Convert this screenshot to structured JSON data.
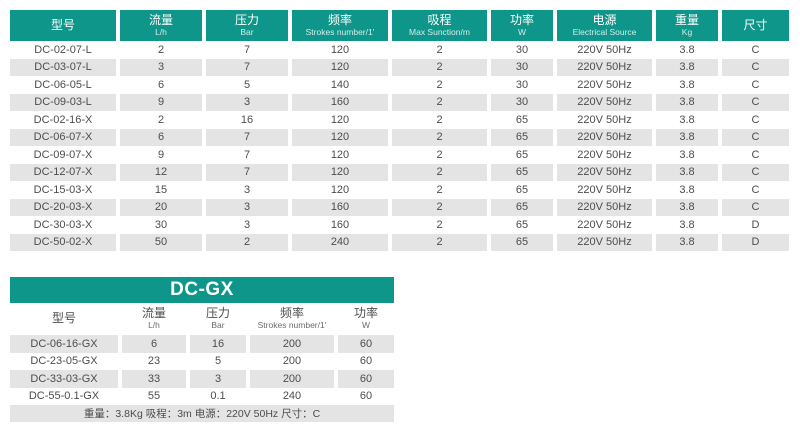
{
  "colors": {
    "accent_teal": "#0f968a",
    "row_alt_gray": "#e4e4e4",
    "text_gray": "#4d4d4d"
  },
  "main_table": {
    "headers": [
      {
        "zh": "型号",
        "en": ""
      },
      {
        "zh": "流量",
        "en": "L/h"
      },
      {
        "zh": "压力",
        "en": "Bar"
      },
      {
        "zh": "频率",
        "en": "Strokes number/1'"
      },
      {
        "zh": "吸程",
        "en": "Max Sunction/m"
      },
      {
        "zh": "功率",
        "en": "W"
      },
      {
        "zh": "电源",
        "en": "Electrical Source"
      },
      {
        "zh": "重量",
        "en": "Kg"
      },
      {
        "zh": "尺寸",
        "en": ""
      }
    ],
    "rows": [
      [
        "DC-02-07-L",
        "2",
        "7",
        "120",
        "2",
        "30",
        "220V 50Hz",
        "3.8",
        "C"
      ],
      [
        "DC-03-07-L",
        "3",
        "7",
        "120",
        "2",
        "30",
        "220V 50Hz",
        "3.8",
        "C"
      ],
      [
        "DC-06-05-L",
        "6",
        "5",
        "140",
        "2",
        "30",
        "220V 50Hz",
        "3.8",
        "C"
      ],
      [
        "DC-09-03-L",
        "9",
        "3",
        "160",
        "2",
        "30",
        "220V 50Hz",
        "3.8",
        "C"
      ],
      [
        "DC-02-16-X",
        "2",
        "16",
        "120",
        "2",
        "65",
        "220V 50Hz",
        "3.8",
        "C"
      ],
      [
        "DC-06-07-X",
        "6",
        "7",
        "120",
        "2",
        "65",
        "220V 50Hz",
        "3.8",
        "C"
      ],
      [
        "DC-09-07-X",
        "9",
        "7",
        "120",
        "2",
        "65",
        "220V 50Hz",
        "3.8",
        "C"
      ],
      [
        "DC-12-07-X",
        "12",
        "7",
        "120",
        "2",
        "65",
        "220V 50Hz",
        "3.8",
        "C"
      ],
      [
        "DC-15-03-X",
        "15",
        "3",
        "120",
        "2",
        "65",
        "220V 50Hz",
        "3.8",
        "C"
      ],
      [
        "DC-20-03-X",
        "20",
        "3",
        "160",
        "2",
        "65",
        "220V 50Hz",
        "3.8",
        "C"
      ],
      [
        "DC-30-03-X",
        "30",
        "3",
        "160",
        "2",
        "65",
        "220V 50Hz",
        "3.8",
        "D"
      ],
      [
        "DC-50-02-X",
        "50",
        "2",
        "240",
        "2",
        "65",
        "220V 50Hz",
        "3.8",
        "D"
      ]
    ]
  },
  "gx_table": {
    "title": "DC-GX",
    "headers": [
      {
        "zh": "型号",
        "en": ""
      },
      {
        "zh": "流量",
        "en": "L/h"
      },
      {
        "zh": "压力",
        "en": "Bar"
      },
      {
        "zh": "频率",
        "en": "Strokes number/1'"
      },
      {
        "zh": "功率",
        "en": "W"
      }
    ],
    "rows": [
      [
        "DC-06-16-GX",
        "6",
        "16",
        "200",
        "60"
      ],
      [
        "DC-23-05-GX",
        "23",
        "5",
        "200",
        "60"
      ],
      [
        "DC-33-03-GX",
        "33",
        "3",
        "200",
        "60"
      ],
      [
        "DC-55-0.1-GX",
        "55",
        "0.1",
        "240",
        "60"
      ]
    ],
    "footer": "重量：3.8Kg 吸程：3m 电源：220V 50Hz 尺寸：C"
  }
}
